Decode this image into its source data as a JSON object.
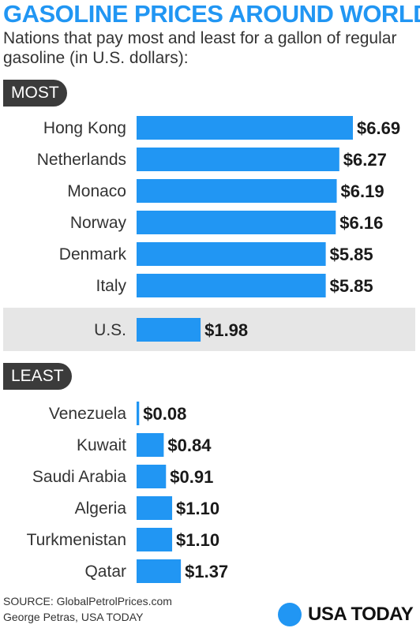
{
  "header": {
    "title": "GASOLINE PRICES AROUND WORLD",
    "subtitle": "Nations that pay most and least for a gallon of regular gasoline (in U.S. dollars):"
  },
  "sections": {
    "most_label": "MOST",
    "least_label": "LEAST"
  },
  "footer": {
    "source": "SOURCE:  GlobalPetrolPrices.com",
    "credit": "George Petras, USA TODAY",
    "brand": "USA TODAY"
  },
  "colors": {
    "bar": "#2196f3",
    "title": "#2196f3",
    "pill": "#3b3b3b",
    "us_band": "#e6e6e6"
  },
  "chart_data": {
    "type": "bar",
    "orientation": "horizontal",
    "title": "GASOLINE PRICES AROUND WORLD",
    "xlim": [
      0,
      6.69
    ],
    "groups": [
      {
        "name": "MOST",
        "categories": [
          "Hong Kong",
          "Netherlands",
          "Monaco",
          "Norway",
          "Denmark",
          "Italy"
        ],
        "values": [
          6.69,
          6.27,
          6.19,
          6.16,
          5.85,
          5.85
        ],
        "labels": [
          "$6.69",
          "$6.27",
          "$6.19",
          "$6.16",
          "$5.85",
          "$5.85"
        ]
      },
      {
        "name": "",
        "categories": [
          "U.S."
        ],
        "values": [
          1.98
        ],
        "labels": [
          "$1.98"
        ]
      },
      {
        "name": "LEAST",
        "categories": [
          "Venezuela",
          "Kuwait",
          "Saudi Arabia",
          "Algeria",
          "Turkmenistan",
          "Qatar"
        ],
        "values": [
          0.08,
          0.84,
          0.91,
          1.1,
          1.1,
          1.37
        ],
        "labels": [
          "$0.08",
          "$0.84",
          "$0.91",
          "$1.10",
          "$1.10",
          "$1.37"
        ]
      }
    ]
  }
}
